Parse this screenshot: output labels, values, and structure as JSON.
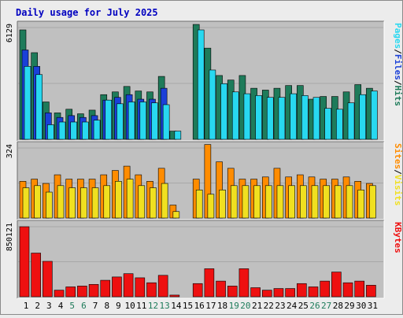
{
  "title": "Daily usage for July 2025",
  "colors": {
    "page_bg": "#ececec",
    "panel_bg": "#c0c0c0",
    "title": "#0000c0",
    "hits": "#1e7b5a",
    "files": "#1a40d8",
    "pages": "#28d8f0",
    "visits": "#f0e020",
    "sites": "#ff8c00",
    "kbytes": "#ee1010",
    "weekend": "#1e7b5a",
    "weekday": "#000000"
  },
  "legend": {
    "top": [
      {
        "text": "Pages",
        "color": "#28d8f0"
      },
      {
        "text": "/",
        "color": "#000000"
      },
      {
        "text": "Files",
        "color": "#1a40d8"
      },
      {
        "text": "/",
        "color": "#000000"
      },
      {
        "text": "Hits",
        "color": "#1e7b5a"
      }
    ],
    "middle": [
      {
        "text": "Sites",
        "color": "#ff8c00"
      },
      {
        "text": "/",
        "color": "#000000"
      },
      {
        "text": "Visits",
        "color": "#f0e020"
      }
    ],
    "bottom": [
      {
        "text": "KBytes",
        "color": "#ee1010"
      }
    ]
  },
  "chart_data": [
    {
      "type": "bar",
      "panel": "hits-files-pages",
      "ymax_label": "6129",
      "ylim": [
        0,
        6129
      ],
      "categories": [
        "1",
        "2",
        "3",
        "4",
        "5",
        "6",
        "7",
        "8",
        "9",
        "10",
        "11",
        "12",
        "13",
        "14",
        "15",
        "16",
        "17",
        "18",
        "19",
        "20",
        "21",
        "22",
        "23",
        "24",
        "25",
        "26",
        "27",
        "28",
        "29",
        "30",
        "31"
      ],
      "series": [
        {
          "name": "Hits",
          "color": "#1e7b5a",
          "values": [
            6000,
            4750,
            2050,
            1450,
            1650,
            1400,
            1600,
            2450,
            2600,
            2900,
            2650,
            2600,
            3450,
            450,
            null,
            6300,
            5000,
            3500,
            3250,
            3500,
            2800,
            2700,
            2800,
            2950,
            2950,
            2200,
            2350,
            2350,
            2600,
            3000,
            2800
          ]
        },
        {
          "name": "Files",
          "color": "#1a40d8",
          "values": [
            4900,
            4000,
            1450,
            1200,
            1300,
            1200,
            1300,
            2150,
            2300,
            2450,
            2200,
            2200,
            2800,
            null,
            null,
            null,
            null,
            null,
            null,
            null,
            null,
            null,
            null,
            null,
            null,
            null,
            null,
            null,
            null,
            null,
            null
          ]
        },
        {
          "name": "Pages",
          "color": "#28d8f0",
          "values": [
            4000,
            3550,
            800,
            950,
            950,
            950,
            1050,
            2150,
            1950,
            2050,
            2050,
            2000,
            1900,
            450,
            null,
            6000,
            3800,
            3050,
            2600,
            2500,
            2400,
            2300,
            2300,
            2500,
            2400,
            2300,
            1700,
            1650,
            2000,
            2450,
            2650
          ]
        }
      ]
    },
    {
      "type": "bar",
      "panel": "sites-visits",
      "ymax_label": "324",
      "ylim": [
        0,
        324
      ],
      "categories": [
        "1",
        "2",
        "3",
        "4",
        "5",
        "6",
        "7",
        "8",
        "9",
        "10",
        "11",
        "12",
        "13",
        "14",
        "15",
        "16",
        "17",
        "18",
        "19",
        "20",
        "21",
        "22",
        "23",
        "24",
        "25",
        "26",
        "27",
        "28",
        "29",
        "30",
        "31"
      ],
      "series": [
        {
          "name": "Sites",
          "color": "#ff8c00",
          "values": [
            170,
            180,
            160,
            200,
            180,
            180,
            180,
            200,
            220,
            240,
            200,
            170,
            230,
            60,
            null,
            180,
            340,
            260,
            230,
            180,
            180,
            190,
            230,
            190,
            200,
            190,
            180,
            180,
            190,
            170,
            160
          ]
        },
        {
          "name": "Visits",
          "color": "#f0e020",
          "values": [
            140,
            150,
            120,
            150,
            140,
            140,
            140,
            150,
            170,
            180,
            150,
            140,
            160,
            30,
            null,
            130,
            110,
            130,
            150,
            150,
            150,
            150,
            150,
            150,
            150,
            150,
            150,
            150,
            150,
            130,
            150
          ]
        }
      ]
    },
    {
      "type": "bar",
      "panel": "kbytes",
      "ymax_label": "850121",
      "ylim": [
        0,
        850121
      ],
      "categories": [
        "1",
        "2",
        "3",
        "4",
        "5",
        "6",
        "7",
        "8",
        "9",
        "10",
        "11",
        "12",
        "13",
        "14",
        "15",
        "16",
        "17",
        "18",
        "19",
        "20",
        "21",
        "22",
        "23",
        "24",
        "25",
        "26",
        "27",
        "28",
        "29",
        "30",
        "31"
      ],
      "series": [
        {
          "name": "KBytes",
          "color": "#ee1010",
          "values": [
            850000,
            530000,
            430000,
            80000,
            120000,
            130000,
            150000,
            200000,
            240000,
            280000,
            230000,
            170000,
            260000,
            20000,
            null,
            160000,
            340000,
            190000,
            130000,
            340000,
            110000,
            80000,
            100000,
            100000,
            160000,
            120000,
            190000,
            300000,
            170000,
            190000,
            140000
          ]
        }
      ]
    }
  ],
  "x_labels": [
    {
      "label": "1",
      "weekend": false
    },
    {
      "label": "2",
      "weekend": false
    },
    {
      "label": "3",
      "weekend": false
    },
    {
      "label": "4",
      "weekend": false
    },
    {
      "label": "5",
      "weekend": true
    },
    {
      "label": "6",
      "weekend": true
    },
    {
      "label": "7",
      "weekend": false
    },
    {
      "label": "8",
      "weekend": false
    },
    {
      "label": "9",
      "weekend": false
    },
    {
      "label": "10",
      "weekend": false
    },
    {
      "label": "11",
      "weekend": false
    },
    {
      "label": "12",
      "weekend": true
    },
    {
      "label": "13",
      "weekend": true
    },
    {
      "label": "14",
      "weekend": false
    },
    {
      "label": "15",
      "weekend": false
    },
    {
      "label": "16",
      "weekend": false
    },
    {
      "label": "17",
      "weekend": false
    },
    {
      "label": "18",
      "weekend": false
    },
    {
      "label": "19",
      "weekend": true
    },
    {
      "label": "20",
      "weekend": true
    },
    {
      "label": "21",
      "weekend": false
    },
    {
      "label": "22",
      "weekend": false
    },
    {
      "label": "23",
      "weekend": false
    },
    {
      "label": "24",
      "weekend": false
    },
    {
      "label": "25",
      "weekend": false
    },
    {
      "label": "26",
      "weekend": true
    },
    {
      "label": "27",
      "weekend": true
    },
    {
      "label": "28",
      "weekend": false
    },
    {
      "label": "29",
      "weekend": false
    },
    {
      "label": "30",
      "weekend": false
    },
    {
      "label": "31",
      "weekend": false
    }
  ]
}
